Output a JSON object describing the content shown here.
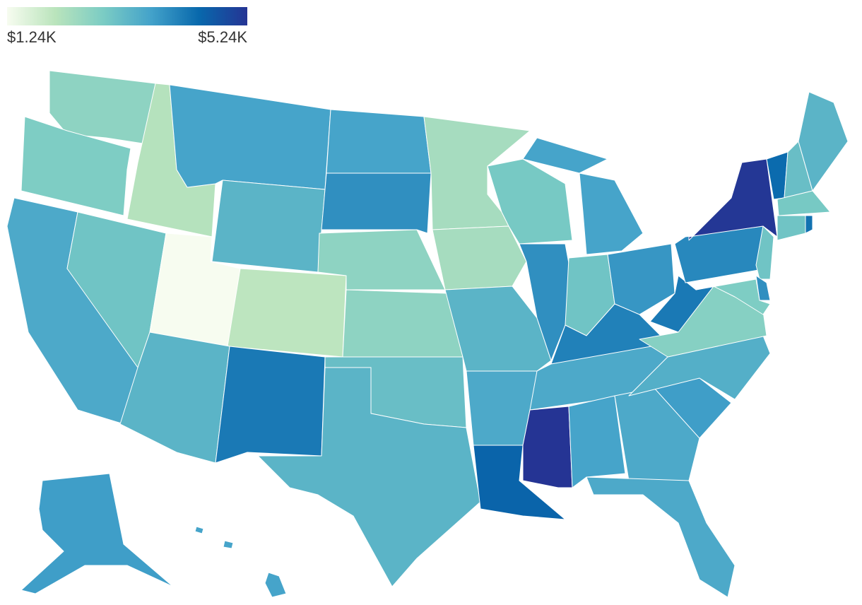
{
  "chart_data": {
    "type": "choropleth",
    "colorlim": [
      1240,
      5240
    ],
    "colors": [
      "#f7fcf0",
      "#bae4bc",
      "#7bccc4",
      "#43a2ca",
      "#0868ac",
      "#253494"
    ],
    "ticks": [
      {
        "value": 1240,
        "label": "$1.24K"
      },
      {
        "value": 5240,
        "label": "$5.24K"
      }
    ],
    "values": [
      2600,
      2800,
      3500,
      3000,
      2100,
      3600,
      3300,
      1240,
      2000,
      3300,
      4200,
      3600,
      3900,
      2600,
      2600,
      3100,
      3300,
      2300,
      2300,
      3300,
      3500,
      4500,
      2900,
      3900,
      3600,
      3000,
      3800,
      4100,
      3500,
      5240,
      3600,
      3500,
      3500,
      3700,
      3400,
      2700,
      4200,
      4000,
      5200,
      4400,
      3100,
      3300,
      2900,
      3000,
      4300,
      3000,
      3900,
      2800,
      3700,
      3600
    ]
  }
}
